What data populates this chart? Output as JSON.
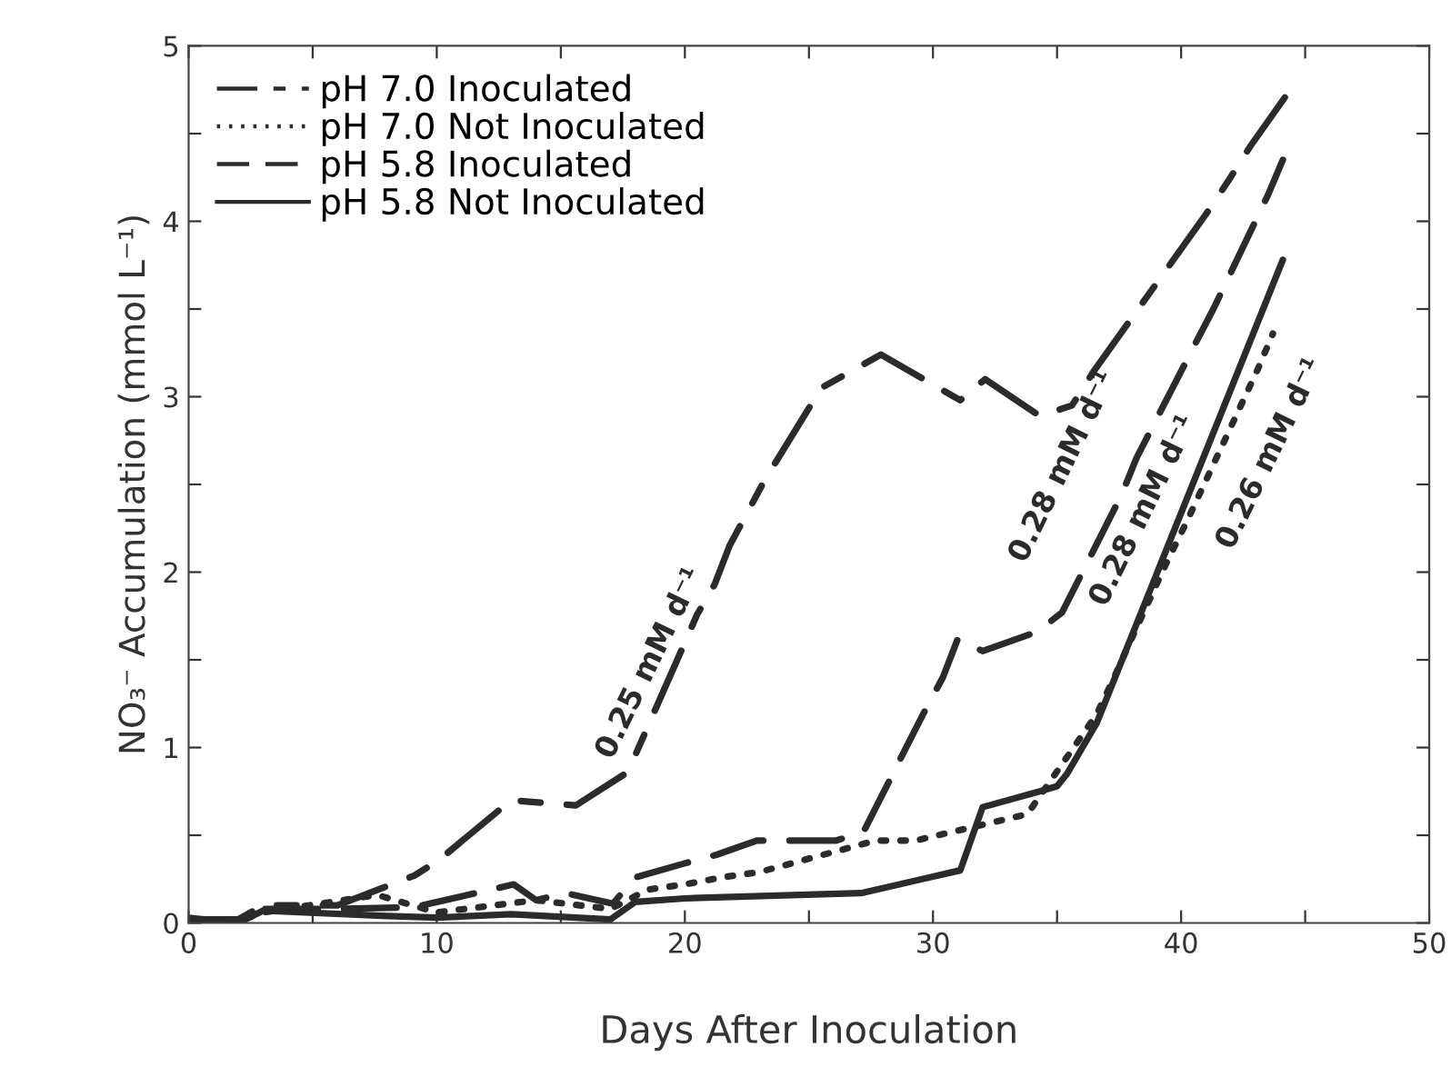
{
  "chart_data": {
    "type": "line",
    "xlabel": "Days After Inoculation",
    "ylabel": "NO₃⁻ Accumulation (mmol L⁻¹)",
    "xlim": [
      0,
      50
    ],
    "ylim": [
      0,
      5
    ],
    "xticks": [
      0,
      {
        "value": 5,
        "label": null
      },
      10,
      {
        "value": 15,
        "label": null
      },
      20,
      {
        "value": 25,
        "label": null
      },
      30,
      {
        "value": 35,
        "label": null
      },
      40,
      {
        "value": 45,
        "label": null
      },
      50
    ],
    "yticks": [
      0,
      {
        "value": 0.5,
        "label": null
      },
      1,
      {
        "value": 1.5,
        "label": null
      },
      2,
      {
        "value": 2.5,
        "label": null
      },
      3,
      {
        "value": 3.5,
        "label": null
      },
      4,
      {
        "value": 4.5,
        "label": null
      },
      5
    ],
    "grid": false,
    "legend": "top left",
    "marker": "none",
    "series": [
      {
        "name": "pH 7.0 Inoculated",
        "color": "#2b2b2b",
        "line_style": "dashdot",
        "x": [
          0,
          2,
          3,
          6,
          9.1,
          10.1,
          13.0,
          15.6,
          17.7,
          20.5,
          21.2,
          21.8,
          23.2,
          25.5,
          27.9,
          31.1,
          32.1,
          34.3,
          35.6,
          36.5,
          41.0,
          41.9,
          42.8,
          44.2
        ],
        "values": [
          0.02,
          0.02,
          0.1,
          0.1,
          0.27,
          0.36,
          0.7,
          0.67,
          0.86,
          1.76,
          1.93,
          2.15,
          2.52,
          3.05,
          3.24,
          2.98,
          3.1,
          2.89,
          2.95,
          3.15,
          4.04,
          4.23,
          4.43,
          4.71
        ]
      },
      {
        "name": "pH 7.0 Not Inoculated",
        "color": "#2b2b2b",
        "line_style": "dotted",
        "x": [
          0,
          2,
          3,
          7.6,
          10,
          14.0,
          17,
          18.5,
          20.0,
          21.5,
          23.0,
          27.7,
          29.3,
          33.8,
          36.6,
          37.3,
          38.0,
          39.4,
          40.2,
          43.1,
          43.7
        ],
        "values": [
          0.01,
          0.01,
          0.06,
          0.16,
          0.06,
          0.13,
          0.08,
          0.19,
          0.22,
          0.26,
          0.29,
          0.47,
          0.47,
          0.62,
          1.19,
          1.4,
          1.62,
          2.05,
          2.28,
          3.16,
          3.36
        ]
      },
      {
        "name": "pH 5.8 Inoculated",
        "color": "#2b2b2b",
        "line_style": "dashed",
        "x": [
          0,
          2,
          3,
          6,
          9.1,
          13.1,
          14.0,
          15.2,
          17.1,
          18.0,
          20.0,
          21.3,
          22.9,
          26.1,
          27.2,
          29.6,
          30.4,
          31.0,
          32.0,
          34.2,
          35.2,
          37.6,
          38.2,
          40.6,
          41.3,
          43.5,
          44.1
        ],
        "values": [
          0.02,
          0.02,
          0.08,
          0.08,
          0.09,
          0.22,
          0.13,
          0.17,
          0.11,
          0.26,
          0.34,
          0.39,
          0.47,
          0.47,
          0.52,
          1.19,
          1.4,
          1.62,
          1.55,
          1.66,
          1.77,
          2.44,
          2.65,
          3.31,
          3.5,
          4.15,
          4.35
        ]
      },
      {
        "name": "pH 5.8 Not Inoculated",
        "color": "#2b2b2b",
        "line_style": "solid",
        "x": [
          0,
          2,
          3,
          8,
          10,
          13,
          17,
          18,
          20,
          27.1,
          31.1,
          32.0,
          34.3,
          35.0,
          35.4,
          36.6,
          44.1
        ],
        "values": [
          0.03,
          0.0,
          0.07,
          0.04,
          0.03,
          0.05,
          0.02,
          0.12,
          0.14,
          0.17,
          0.3,
          0.66,
          0.75,
          0.78,
          0.85,
          1.14,
          3.78
        ]
      }
    ],
    "annotations": [
      "0.25 mM d⁻¹",
      "0.28 mM d⁻¹",
      "0.28 mM d⁻¹",
      "0.26 mM d⁻¹"
    ]
  }
}
